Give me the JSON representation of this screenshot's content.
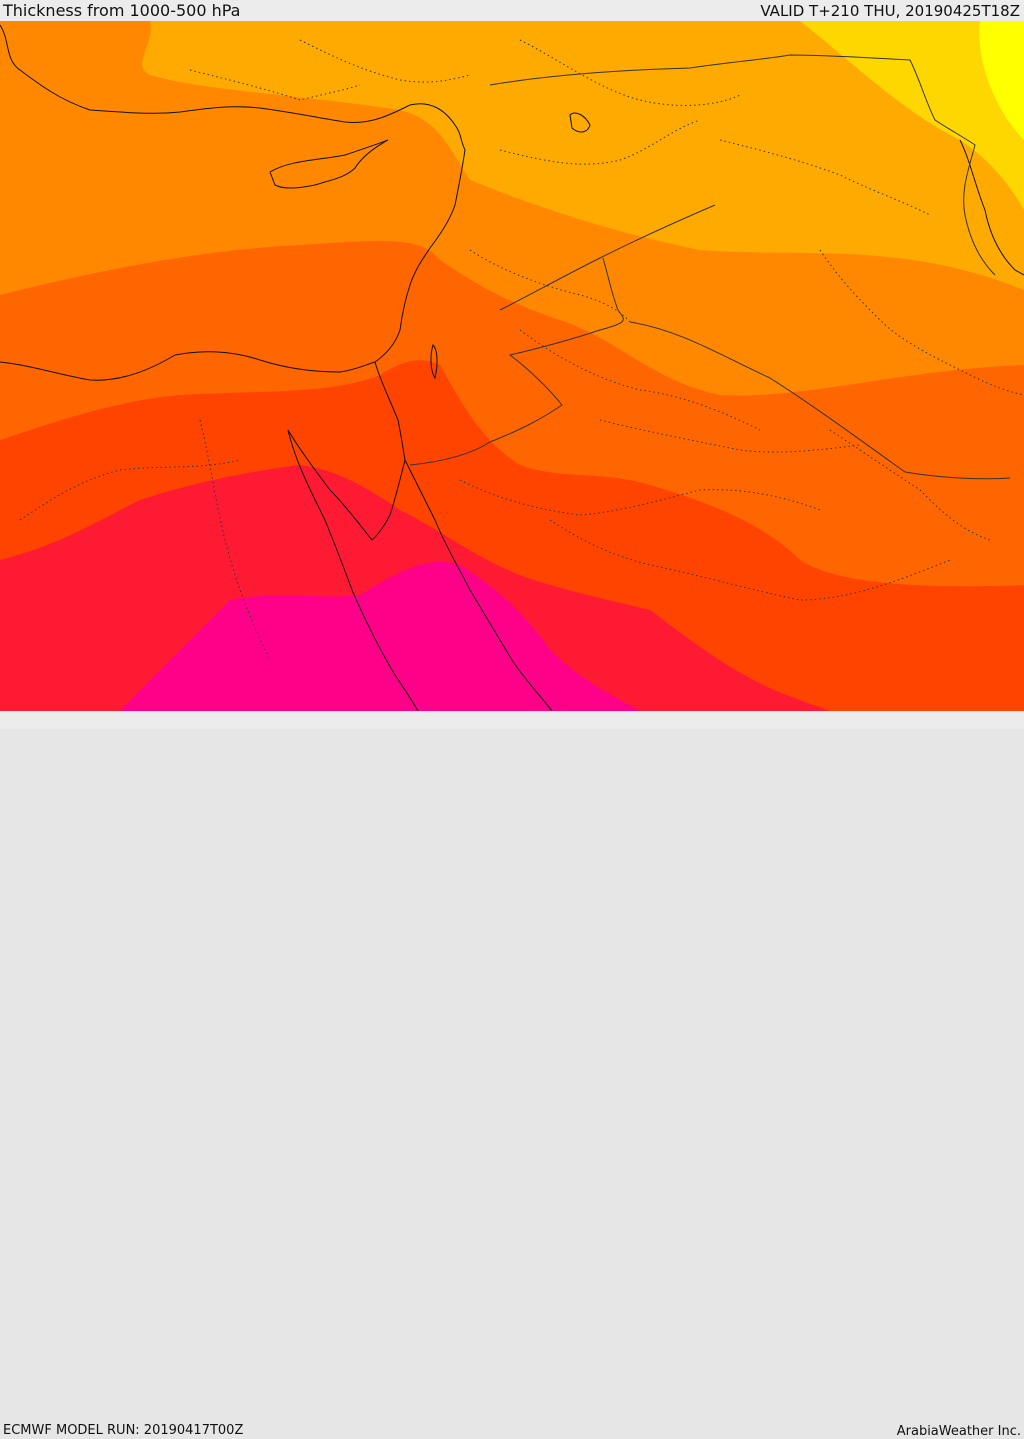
{
  "header": {
    "title": "Thickness from 1000-500 hPa",
    "valid": "VALID T+210 THU, 20190425T18Z"
  },
  "footer": {
    "model_run": "ECMWF MODEL RUN: 20190417T00Z",
    "credit": "ArabiaWeather Inc."
  },
  "map": {
    "field": "1000-500 hPa thickness",
    "palette": {
      "band_1": "#ffff00",
      "band_2": "#ffd700",
      "band_3": "#ffaa00",
      "band_4": "#ff8800",
      "band_5": "#ff6600",
      "band_6": "#ff4400",
      "band_7": "#ff1a33",
      "band_8": "#ff0088"
    },
    "line_colors": {
      "coast": "#111111",
      "border": "#333333"
    }
  }
}
